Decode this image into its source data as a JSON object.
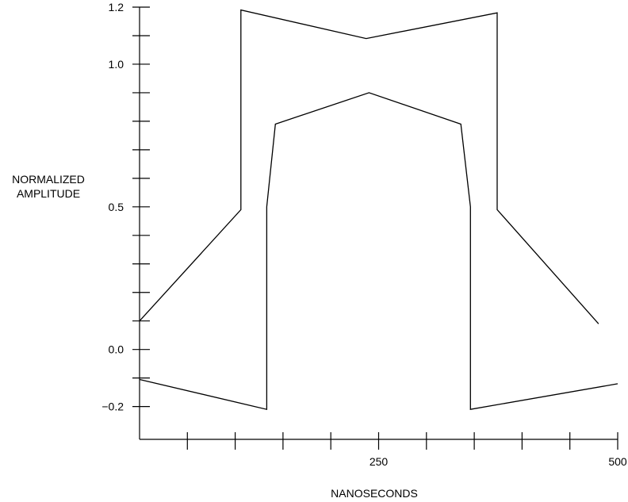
{
  "chart_data": {
    "type": "line",
    "title": "",
    "xlabel": "NANOSECONDS",
    "ylabel": [
      "NORMALIZED",
      "AMPLITUDE"
    ],
    "xlim": [
      0,
      500
    ],
    "ylim": [
      -0.315,
      1.2
    ],
    "x_tick_labels": [
      {
        "value": 250,
        "label": "250"
      },
      {
        "value": 500,
        "label": "500"
      }
    ],
    "x_minor_ticks": [
      50,
      100,
      150,
      200,
      250,
      300,
      350,
      400,
      450,
      500
    ],
    "y_tick_labels": [
      {
        "value": 1.2,
        "label": "1.2"
      },
      {
        "value": 1.0,
        "label": "1.0"
      },
      {
        "value": 0.5,
        "label": "0.5"
      },
      {
        "value": 0.0,
        "label": "0.0"
      },
      {
        "value": -0.2,
        "label": "−0.2"
      }
    ],
    "y_minor_ticks": [
      1.2,
      1.1,
      1.0,
      0.9,
      0.8,
      0.7,
      0.6,
      0.5,
      0.4,
      0.3,
      0.2,
      0.1,
      0.0,
      -0.1,
      -0.2
    ],
    "grid": false,
    "series": [
      {
        "color": "#000000",
        "points": [
          [
            0,
            0.1
          ],
          [
            106,
            0.49
          ],
          [
            106,
            1.19
          ],
          [
            237,
            1.09
          ],
          [
            374,
            1.18
          ],
          [
            374,
            0.49
          ],
          [
            480,
            0.09
          ]
        ]
      },
      {
        "color": "#000000",
        "points": [
          [
            0,
            -0.105
          ],
          [
            133,
            -0.21
          ],
          [
            133,
            0.5
          ],
          [
            142,
            0.79
          ],
          [
            240,
            0.9
          ],
          [
            336,
            0.79
          ],
          [
            346,
            0.5
          ],
          [
            346,
            -0.21
          ],
          [
            500,
            -0.12
          ]
        ]
      }
    ]
  }
}
